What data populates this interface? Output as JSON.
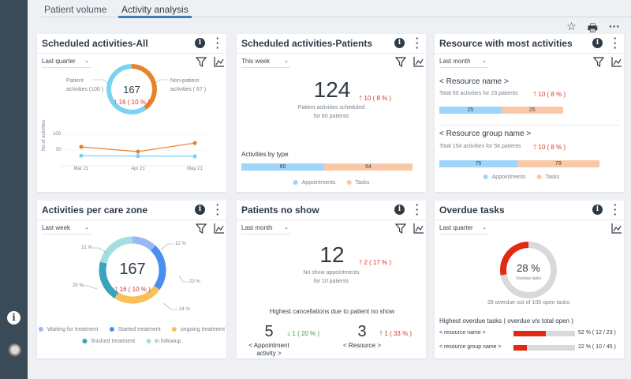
{
  "tabs": [
    {
      "label": "Patient volume",
      "active": false
    },
    {
      "label": "Activity analysis",
      "active": true
    }
  ],
  "toolbar": {
    "icons": [
      "star-icon",
      "print-icon",
      "more-horizontal-icon"
    ]
  },
  "sidebar": {
    "icons": [
      "info-icon",
      "user-avatar"
    ]
  },
  "colors": {
    "up": "#d9352b",
    "down": "#3a9b48",
    "appointments": "#9dd5fb",
    "tasks": "#fbc8a7",
    "patient": "#7ad3f0",
    "non_patient": "#e5852b",
    "overdue": "#e22a12"
  },
  "cards": {
    "scheduled_all": {
      "title": "Scheduled activities-All",
      "period": "Last quarter",
      "total": "167",
      "change": "16 ( 10 % )",
      "label_patient": "Patient",
      "label_patient2": "activities (100 )",
      "label_nonpatient": "Non-patient",
      "label_nonpatient2": "activities ( 67 )",
      "donut": {
        "patient": 100,
        "non_patient": 67
      }
    },
    "scheduled_patients": {
      "title": "Scheduled activities-Patients",
      "period": "This week",
      "total": "124",
      "change": "10 ( 8 % )",
      "sub1": "Patient activities scheduled",
      "sub2": "for 60 patients",
      "by_type": "Activities by type",
      "appointments": 60,
      "tasks": 64,
      "legend": [
        "Appointments",
        "Tasks"
      ]
    },
    "resource": {
      "title": "Resource with most activities",
      "period": "Last month",
      "r1": {
        "name": "< Resource name >",
        "total": "Total 50 activities for 23 patients",
        "change": "10 ( 8 % )",
        "appointments": 25,
        "tasks": 25
      },
      "r2": {
        "name": "< Resource group name >",
        "total": "Total 154 activities for 56 patients",
        "change": "10 ( 8 % )",
        "appointments": 75,
        "tasks": 79
      },
      "legend": [
        "Appointments",
        "Tasks"
      ]
    },
    "care_zone": {
      "title": "Activities per care zone",
      "period": "Last week",
      "total": "167",
      "change": "16 ( 10 % )",
      "segments": [
        {
          "label": "Waiting for treatment",
          "pct": 12,
          "pct_label": "12 %",
          "color": "#9bb8f5"
        },
        {
          "label": "Started treatment",
          "pct": 23,
          "pct_label": "23 %",
          "color": "#4a8ef0"
        },
        {
          "label": "ongoing treatment",
          "pct": 24,
          "pct_label": "24 %",
          "color": "#fbbf5a"
        },
        {
          "label": "finished treatment",
          "pct": 20,
          "pct_label": "20 %",
          "color": "#3aa3be"
        },
        {
          "label": "In followup",
          "pct": 21,
          "pct_label": "21 %",
          "color": "#a3dfe0"
        }
      ]
    },
    "no_show": {
      "title": "Patients no show",
      "period": "Last month",
      "total": "12",
      "change": "2 ( 17 % )",
      "sub1": "No show appointments",
      "sub2": "for 10 patients",
      "highest": "Highest cancellations due to patient no show",
      "appt": {
        "value": "5",
        "change": "1 ( 20 % )",
        "label1": "< Appointment",
        "label2": "activity >"
      },
      "res": {
        "value": "3",
        "change": "1 ( 33 % )",
        "label": "< Resource >"
      }
    },
    "overdue": {
      "title": "Overdue tasks",
      "period": "Last quarter",
      "pct": 28,
      "pct_label": "28 %",
      "center_label": "Overdue tasks",
      "summary": "28 overdue out of 100 open tasks",
      "highest": "Highest overdue tasks ( overdue v/s total open )",
      "rows": [
        {
          "name": "< resource name >",
          "pct": 52,
          "value": "52 % ( 12 / 23 )"
        },
        {
          "name": "< resource group name >",
          "pct": 22,
          "value": "22 % ( 10 / 45 )"
        }
      ]
    }
  },
  "chart_data": {
    "type": "line",
    "ylabel": "No of activities",
    "categories": [
      "Mar 21",
      "Apr 21",
      "May 21"
    ],
    "yticks": [
      50,
      100
    ],
    "ylim": [
      0,
      100
    ],
    "grid": true,
    "series": [
      {
        "color": "#e5852b",
        "values": [
          60,
          45,
          72
        ]
      },
      {
        "color": "#7ad3f0",
        "values": [
          32,
          31,
          30
        ]
      }
    ]
  }
}
